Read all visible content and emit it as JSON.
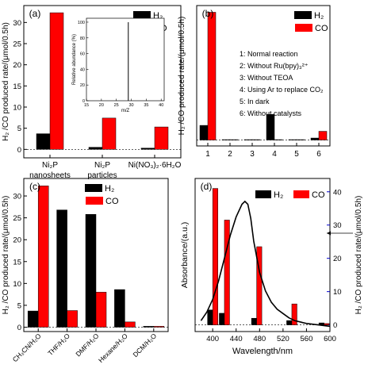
{
  "colors": {
    "h2": "#000000",
    "co": "#ff0000",
    "right_axis": "#0000cc"
  },
  "chart_data": [
    {
      "panel": "(a)",
      "type": "bar",
      "ylabel": "H₂ /CO produced rate/(μmol/0.5h)",
      "ylim": [
        -2,
        34
      ],
      "yticks": [
        0,
        5,
        10,
        15,
        20,
        25,
        30
      ],
      "categories": [
        [
          "Ni₂P",
          "nanosheets"
        ],
        [
          "Ni₂P",
          "particles"
        ],
        [
          "Ni(NO₃)₂·6H₂O"
        ]
      ],
      "series": [
        {
          "name": "H₂",
          "values": [
            3.7,
            0.5,
            0.3
          ]
        },
        {
          "name": "CO",
          "values": [
            32.3,
            7.4,
            5.3
          ]
        }
      ],
      "legend": "top-right",
      "inset": {
        "type": "line",
        "xlabel": "m/Z",
        "ylabel": "Relative abundance (%)",
        "xlim": [
          15,
          41
        ],
        "ylim": [
          0,
          105
        ],
        "xticks": [
          15,
          20,
          25,
          30,
          35,
          40
        ],
        "yticks": [
          0,
          20,
          40,
          60,
          80,
          100
        ],
        "peak": {
          "x": 29,
          "y": 100
        }
      }
    },
    {
      "panel": "(b)",
      "type": "bar",
      "ylabel": "H₂ /CO produced rate/(μmol/0.5h)",
      "ylim": [
        -1.5,
        34
      ],
      "categories": [
        "1",
        "2",
        "3",
        "4",
        "5",
        "6"
      ],
      "series": [
        {
          "name": "H₂",
          "values": [
            3.7,
            0.1,
            0.1,
            6.5,
            0.1,
            0.5
          ]
        },
        {
          "name": "CO",
          "values": [
            32.3,
            0.1,
            0.1,
            0.1,
            0.1,
            2.2
          ]
        }
      ],
      "legend": "top-right",
      "notes": [
        "1: Normal reaction",
        "2: Without Ru(bpy)₃²⁺",
        "3: Without TEOA",
        "4: Using Ar to replace CO₂",
        "5: In dark",
        "6: Without catalysts"
      ]
    },
    {
      "panel": "(c)",
      "type": "bar",
      "ylabel": "H₂ /CO produced rate/(μmol/0.5h)",
      "ylim": [
        -1,
        34
      ],
      "yticks": [
        0,
        5,
        10,
        15,
        20,
        25,
        30
      ],
      "categories": [
        "CH₃CN/H₂O",
        "THF/H₂O",
        "DMF/H₂O",
        "Hexane/H₂O",
        "DCM/H₂O"
      ],
      "series": [
        {
          "name": "H₂",
          "values": [
            3.7,
            26.8,
            25.8,
            8.6,
            0.2
          ]
        },
        {
          "name": "CO",
          "values": [
            32.3,
            3.8,
            8.0,
            1.2,
            0.2
          ]
        }
      ],
      "legend": "top-right"
    },
    {
      "panel": "(d)",
      "type": "bar",
      "xlabel": "Wavelength/nm",
      "ylabel": "Absorbance/(a.u.)",
      "ylabel_right": "H₂ /CO produced rate/(μmol/0.5h)",
      "xlim": [
        370,
        600
      ],
      "xticks": [
        400,
        440,
        480,
        520,
        560,
        600
      ],
      "ylim_right": [
        -2,
        44
      ],
      "yticks_right": [
        0,
        10,
        20,
        30,
        40
      ],
      "categories": [
        400,
        420,
        475,
        535,
        590
      ],
      "series": [
        {
          "name": "H₂",
          "values": [
            4.5,
            3.5,
            2.0,
            1.3,
            0.6
          ]
        },
        {
          "name": "CO",
          "values": [
            41.0,
            31.5,
            23.5,
            6.3,
            0.4
          ]
        }
      ],
      "absorbance_curve": {
        "x": [
          380,
          390,
          400,
          410,
          420,
          430,
          440,
          450,
          455,
          460,
          465,
          470,
          480,
          490,
          500,
          510,
          520,
          530,
          540,
          560,
          580,
          600
        ],
        "y": [
          0.06,
          0.12,
          0.21,
          0.34,
          0.5,
          0.66,
          0.79,
          0.88,
          0.9,
          0.88,
          0.78,
          0.62,
          0.4,
          0.27,
          0.19,
          0.14,
          0.11,
          0.08,
          0.06,
          0.04,
          0.03,
          0.02
        ]
      },
      "legend": "top-right"
    }
  ]
}
